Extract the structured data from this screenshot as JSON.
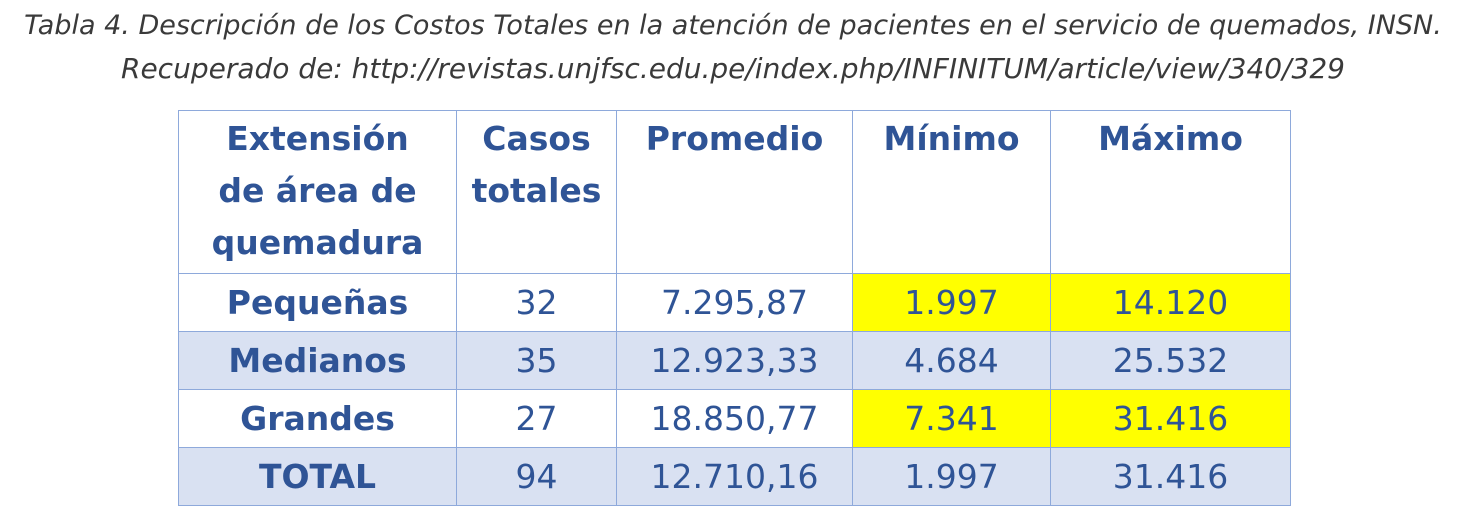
{
  "caption": {
    "line1": "Tabla 4. Descripción de los Costos Totales en la atención de pacientes en el servicio de quemados, INSN.",
    "line2": "Recuperado de: http://revistas.unjfsc.edu.pe/index.php/INFINITUM/article/view/340/329"
  },
  "table": {
    "headers": {
      "extension": "Extensión de área de quemadura",
      "casos": "Casos totales",
      "promedio": "Promedio",
      "minimo": "Mínimo",
      "maximo": "Máximo"
    },
    "rows": [
      {
        "label": "Pequeñas",
        "casos": "32",
        "promedio": "7.295,87",
        "minimo": "1.997",
        "maximo": "14.120"
      },
      {
        "label": "Medianos",
        "casos": "35",
        "promedio": "12.923,33",
        "minimo": "4.684",
        "maximo": "25.532"
      },
      {
        "label": "Grandes",
        "casos": "27",
        "promedio": "18.850,77",
        "minimo": "7.341",
        "maximo": "31.416"
      },
      {
        "label": "TOTAL",
        "casos": "94",
        "promedio": "12.710,16",
        "minimo": "1.997",
        "maximo": "31.416"
      }
    ]
  },
  "colors": {
    "text": "#2f5496",
    "border": "#8ea9db",
    "band": "#d9e1f2",
    "highlight": "#ffff00",
    "caption": "#3a3a3a"
  }
}
